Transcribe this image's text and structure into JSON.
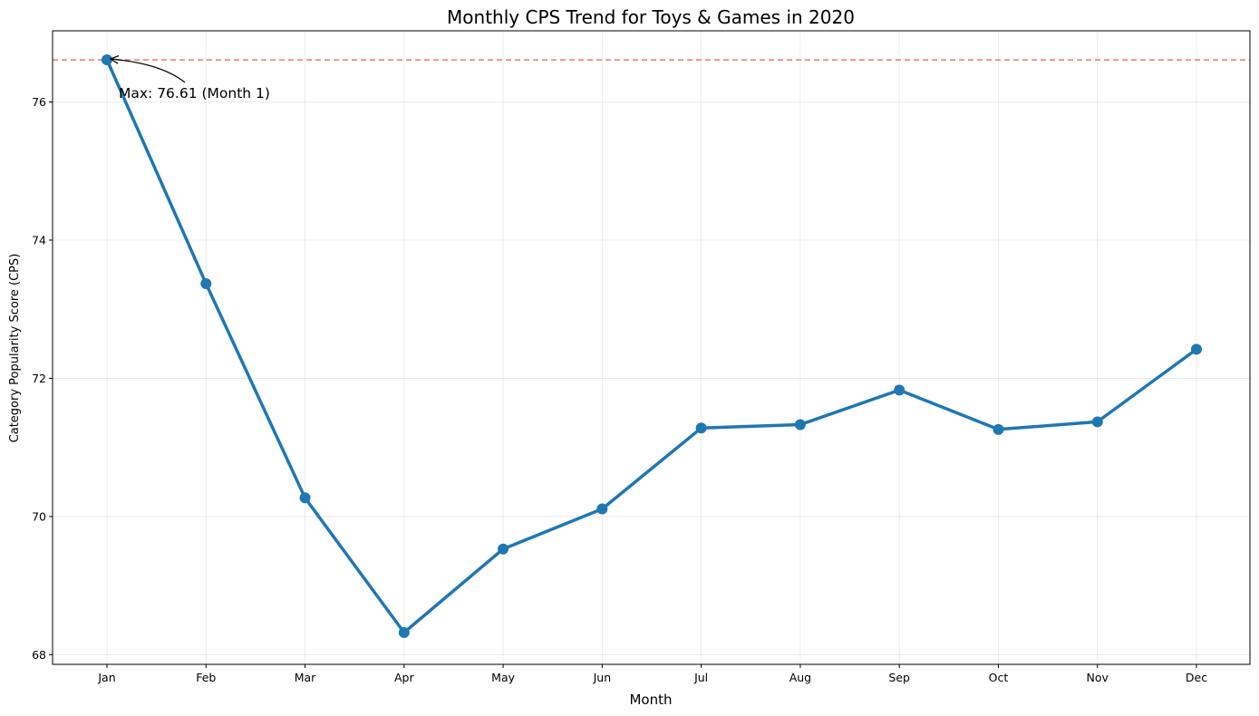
{
  "chart_data": {
    "type": "line",
    "title": "Monthly CPS Trend for Toys & Games in 2020",
    "xlabel": "Month",
    "ylabel": "Category Popularity Score (CPS)",
    "categories": [
      "Jan",
      "Feb",
      "Mar",
      "Apr",
      "May",
      "Jun",
      "Jul",
      "Aug",
      "Sep",
      "Oct",
      "Nov",
      "Dec"
    ],
    "series": [
      {
        "values": [
          76.61,
          73.37,
          70.27,
          68.32,
          69.53,
          70.11,
          71.28,
          71.33,
          71.83,
          71.26,
          71.37,
          72.42
        ],
        "color": "#1f77b4",
        "marker": "circle"
      }
    ],
    "ylim": [
      67.86,
      77.03
    ],
    "yticks": [
      68,
      70,
      72,
      74,
      76
    ],
    "grid": true,
    "reference_line": {
      "y": 76.61,
      "color": "#f08080",
      "style": "dashed"
    },
    "annotation": {
      "text": "Max: 76.61 (Month 1)",
      "target_category": "Jan",
      "target_value": 76.61
    }
  }
}
